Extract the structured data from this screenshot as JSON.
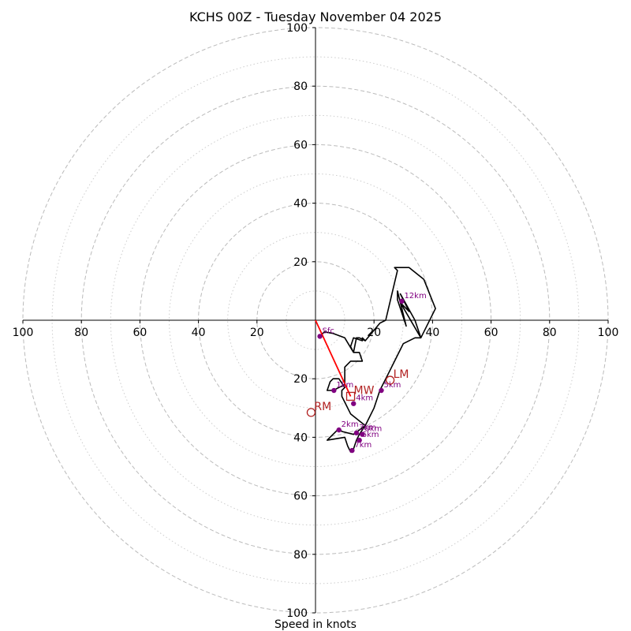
{
  "chart_data": {
    "type": "hodograph",
    "title": "KCHS 00Z - Tuesday November 04 2025",
    "xlabel": "Speed in knots",
    "units": "knots",
    "xlim": [
      -100,
      100
    ],
    "ylim": [
      -100,
      100
    ],
    "major_rings": [
      20,
      40,
      60,
      80,
      100
    ],
    "minor_rings": [
      10,
      30,
      50,
      70,
      90
    ],
    "x_tick_labels": [
      "100",
      "80",
      "60",
      "40",
      "20",
      "20",
      "40",
      "60",
      "80",
      "100"
    ],
    "y_tick_labels": [
      "100",
      "80",
      "60",
      "40",
      "20",
      "20",
      "40",
      "60",
      "80",
      "100"
    ],
    "trace": [
      [
        1.5,
        -5.5
      ],
      [
        3,
        -4
      ],
      [
        6,
        -4.5
      ],
      [
        10,
        -6
      ],
      [
        13,
        -11
      ],
      [
        12,
        -9
      ],
      [
        13,
        -6
      ],
      [
        16,
        -7
      ],
      [
        16,
        -6
      ],
      [
        17,
        -7
      ],
      [
        22,
        -1
      ],
      [
        24,
        0
      ],
      [
        28,
        17
      ],
      [
        27,
        18
      ],
      [
        32,
        18
      ],
      [
        37,
        14
      ],
      [
        41,
        4
      ],
      [
        36,
        -6
      ],
      [
        29,
        6
      ],
      [
        28,
        10
      ],
      [
        28,
        7
      ],
      [
        31,
        -2
      ],
      [
        29,
        6
      ],
      [
        32,
        3
      ],
      [
        29,
        9
      ],
      [
        34,
        0
      ],
      [
        36,
        -6
      ],
      [
        34,
        -6
      ],
      [
        30,
        -8
      ],
      [
        25,
        -18
      ],
      [
        22,
        -24
      ],
      [
        20,
        -30
      ],
      [
        17,
        -36
      ],
      [
        15,
        -39
      ],
      [
        14,
        -41
      ],
      [
        13,
        -44
      ],
      [
        12,
        -45
      ],
      [
        11,
        -43
      ],
      [
        10,
        -40
      ],
      [
        4,
        -41
      ],
      [
        8,
        -37
      ],
      [
        9,
        -38
      ],
      [
        13,
        -39
      ],
      [
        17,
        -36
      ],
      [
        12,
        -32
      ],
      [
        10,
        -28
      ],
      [
        9,
        -26
      ],
      [
        9,
        -24
      ],
      [
        10,
        -23
      ],
      [
        8,
        -20
      ],
      [
        6,
        -20
      ],
      [
        5,
        -21
      ],
      [
        4,
        -24
      ],
      [
        6,
        -24
      ],
      [
        8,
        -23
      ],
      [
        10,
        -22
      ],
      [
        10,
        -16
      ],
      [
        12,
        -14
      ],
      [
        16,
        -14
      ],
      [
        15,
        -11
      ],
      [
        13,
        -11
      ],
      [
        14,
        -6
      ],
      [
        15,
        -6
      ],
      [
        17,
        -7
      ]
    ],
    "height_points": [
      {
        "label": "Sfc",
        "u": 1.5,
        "v": -5.5
      },
      {
        "label": "1km",
        "u": 6.3,
        "v": -24
      },
      {
        "label": "2km",
        "u": 8,
        "v": -37.5
      },
      {
        "label": "3km",
        "u": 14,
        "v": -38.5
      },
      {
        "label": "4km",
        "u": 13,
        "v": -28.5
      },
      {
        "label": "5km",
        "u": 22.5,
        "v": -24
      },
      {
        "label": "6km",
        "u": 15,
        "v": -41
      },
      {
        "label": "7km",
        "u": 12.5,
        "v": -44.5
      },
      {
        "label": "8km",
        "u": 16,
        "v": -39
      },
      {
        "label": "12km",
        "u": 29.5,
        "v": 6.5
      }
    ],
    "storm_motions": [
      {
        "label": "LM",
        "u": 25.5,
        "v": -20.5,
        "marker": "circle"
      },
      {
        "label": "RM",
        "u": -1.5,
        "v": -31.5,
        "marker": "circle"
      },
      {
        "label": "MW",
        "u": 12,
        "v": -26,
        "marker": "square"
      }
    ],
    "shear_vector": {
      "from": [
        0,
        0
      ],
      "to": [
        12,
        -26
      ]
    },
    "colors": {
      "trace": "#000000",
      "height_points": "#800080",
      "storm_motion": "#b22222",
      "shear_vector": "#ff0000",
      "grid": "#bbbbbb"
    }
  }
}
